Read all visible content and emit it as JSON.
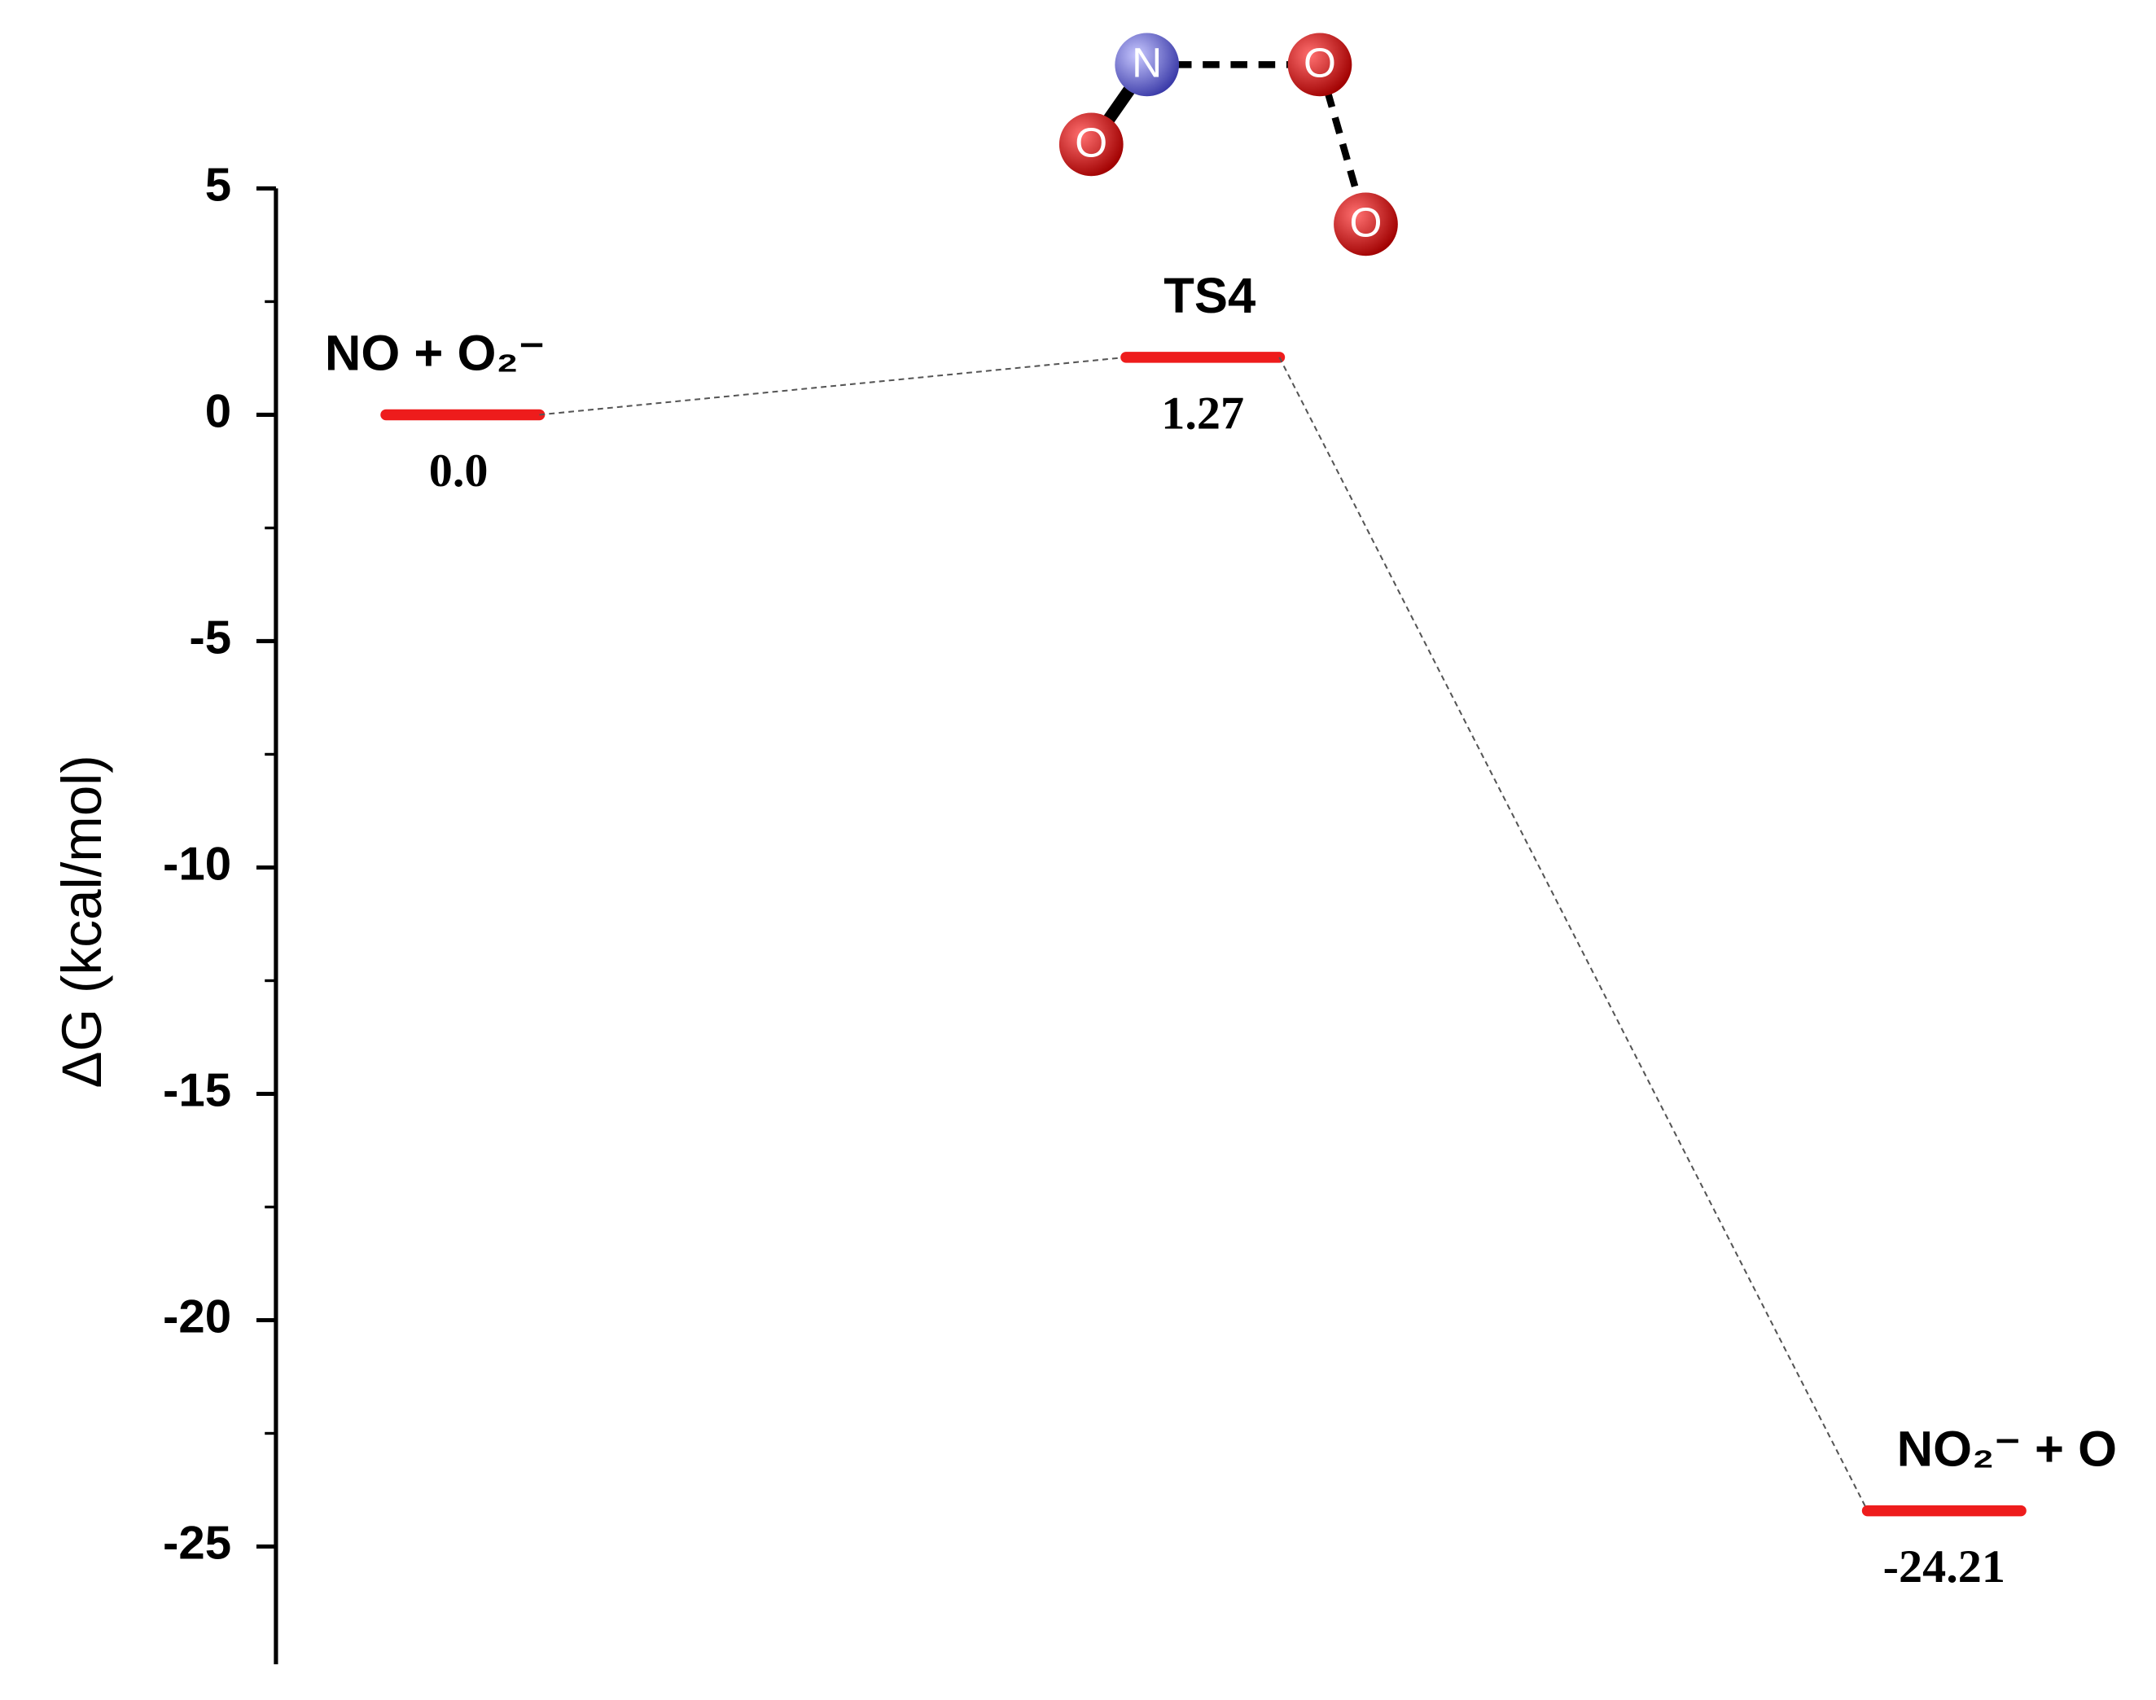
{
  "chart_data": {
    "type": "energy-profile",
    "y_label": "ΔG (kcal/mol)",
    "categories": [
      "NO + O₂⁻",
      "TS4",
      "NO₂⁻ + O"
    ],
    "values": [
      0,
      1.27,
      -24.21
    ],
    "value_labels": [
      "0.0",
      "1.27",
      "-24.21"
    ],
    "color": "#ee1c1c",
    "ylim": [
      -27.6,
      5
    ],
    "yticks": [
      5,
      0,
      -5,
      -10,
      -15,
      -20,
      -25
    ],
    "atom_labels": [
      "N",
      "O",
      "O",
      "O"
    ]
  }
}
